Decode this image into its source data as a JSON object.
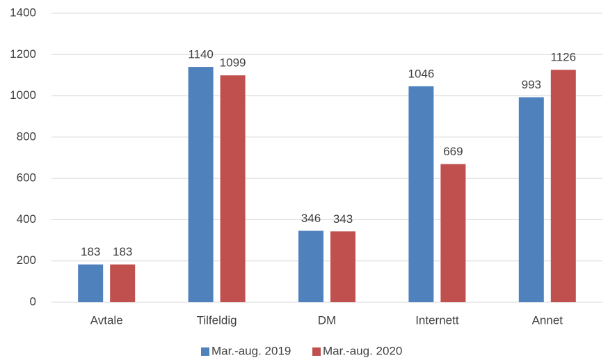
{
  "chart_data": {
    "type": "bar",
    "categories": [
      "Avtale",
      "Tilfeldig",
      "DM",
      "Internett",
      "Annet"
    ],
    "series": [
      {
        "name": "Mar.-aug. 2019",
        "color": "#4f81bd",
        "values": [
          183,
          1140,
          346,
          1046,
          993
        ]
      },
      {
        "name": "Mar.-aug. 2020",
        "color": "#c0504d",
        "values": [
          183,
          1099,
          343,
          669,
          1126
        ]
      }
    ],
    "ylim": [
      0,
      1400
    ],
    "yticks": [
      0,
      200,
      400,
      600,
      800,
      1000,
      1200,
      1400
    ],
    "grid": true,
    "legend": "bottom"
  }
}
